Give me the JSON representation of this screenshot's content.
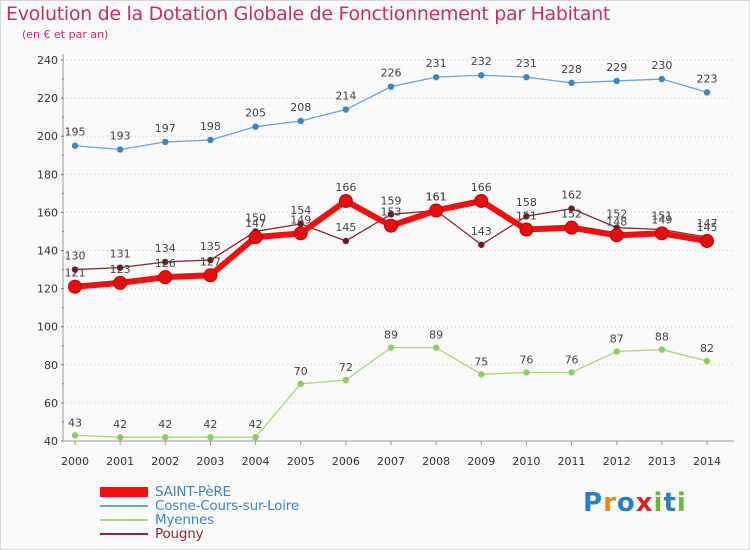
{
  "header": {
    "title": "Evolution de la Dotation Globale de Fonctionnement par Habitant",
    "subtitle": "(en € et par an)"
  },
  "logo": {
    "text": "Proxiti",
    "letters": [
      "P",
      "r",
      "o",
      "x",
      "i",
      "t",
      "i"
    ],
    "colors": [
      "#2a7fc0",
      "#e08a1f",
      "#2a7fc0",
      "#d9262b",
      "#6cb33f",
      "#2a7fc0",
      "#6cb33f"
    ]
  },
  "chart_data": {
    "type": "line",
    "title": "Evolution de la Dotation Globale de Fonctionnement par Habitant",
    "subtitle": "(en € et par an)",
    "xlabel": "",
    "ylabel": "",
    "x": [
      2000,
      2001,
      2002,
      2003,
      2004,
      2005,
      2006,
      2007,
      2008,
      2009,
      2010,
      2011,
      2012,
      2013,
      2014
    ],
    "x_tick_labels": [
      "2000",
      "2001",
      "2002",
      "2003",
      "2004",
      "2005",
      "2006",
      "2007",
      "2008",
      "2009",
      "2010",
      "2011",
      "2012",
      "2013",
      "2014"
    ],
    "ylim": [
      40,
      240
    ],
    "y_ticks": [
      40,
      60,
      80,
      100,
      120,
      140,
      160,
      180,
      200,
      220,
      240
    ],
    "grid": "horizontal dotted",
    "legend_position": "bottom-left",
    "series": [
      {
        "name": "Cosne-Cours-sur-Loire",
        "color": "#6fa3d4",
        "marker": "#3b87c6",
        "values": [
          195,
          193,
          197,
          198,
          205,
          208,
          214,
          226,
          231,
          232,
          231,
          228,
          229,
          230,
          223
        ]
      },
      {
        "name": "Myennes",
        "color": "#a6d97a",
        "marker": "#8fcc63",
        "values": [
          43,
          42,
          42,
          42,
          42,
          70,
          72,
          89,
          89,
          75,
          76,
          76,
          87,
          88,
          82
        ]
      },
      {
        "name": "Pougny",
        "color": "#8a2a30",
        "marker": "#6b1a1f",
        "values": [
          130,
          131,
          134,
          135,
          150,
          154,
          145,
          159,
          161,
          143,
          158,
          162,
          152,
          151,
          147
        ]
      },
      {
        "name": "SAINT-PèRE",
        "color": "#f01010",
        "marker": "#e01010",
        "values": [
          121,
          123,
          126,
          127,
          147,
          149,
          166,
          153,
          161,
          166,
          151,
          152,
          148,
          149,
          145
        ]
      }
    ]
  }
}
